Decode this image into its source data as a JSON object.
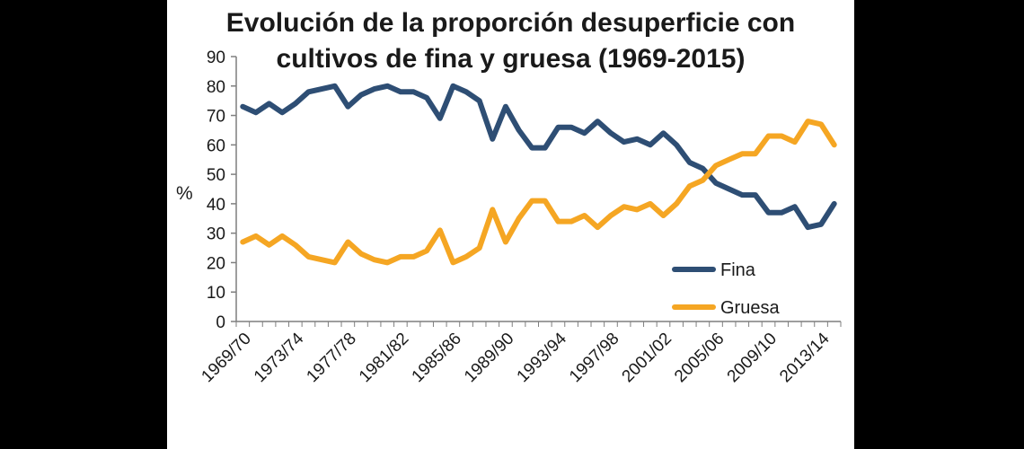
{
  "chart_data": {
    "type": "line",
    "title_lines": [
      "Evolución de la proporción desuperficie con",
      "cultivos de fina y gruesa (1969-2015)"
    ],
    "ylabel": "%",
    "ylim": [
      0,
      90
    ],
    "yticks": [
      0,
      10,
      20,
      30,
      40,
      50,
      60,
      70,
      80,
      90
    ],
    "xtick_labels": [
      "1969/70",
      "1973/74",
      "1977/78",
      "1981/82",
      "1985/86",
      "1989/90",
      "1993/94",
      "1997/98",
      "2001/02",
      "2005/06",
      "2009/10",
      "2013/14"
    ],
    "xtick_index_step": 4,
    "series": [
      {
        "name": "Fina",
        "color": "#2e4e74",
        "values": [
          73,
          71,
          74,
          71,
          74,
          78,
          79,
          80,
          73,
          77,
          79,
          80,
          78,
          78,
          76,
          69,
          80,
          78,
          75,
          62,
          73,
          65,
          59,
          59,
          66,
          66,
          64,
          68,
          64,
          61,
          62,
          60,
          64,
          60,
          54,
          52,
          47,
          45,
          43,
          43,
          37,
          37,
          39,
          32,
          33,
          40
        ]
      },
      {
        "name": "Gruesa",
        "color": "#f5a623",
        "values": [
          27,
          29,
          26,
          29,
          26,
          22,
          21,
          20,
          27,
          23,
          21,
          20,
          22,
          22,
          24,
          31,
          20,
          22,
          25,
          38,
          27,
          35,
          41,
          41,
          34,
          34,
          36,
          32,
          36,
          39,
          38,
          40,
          36,
          40,
          46,
          48,
          53,
          55,
          57,
          57,
          63,
          63,
          61,
          68,
          67,
          60
        ]
      }
    ]
  }
}
